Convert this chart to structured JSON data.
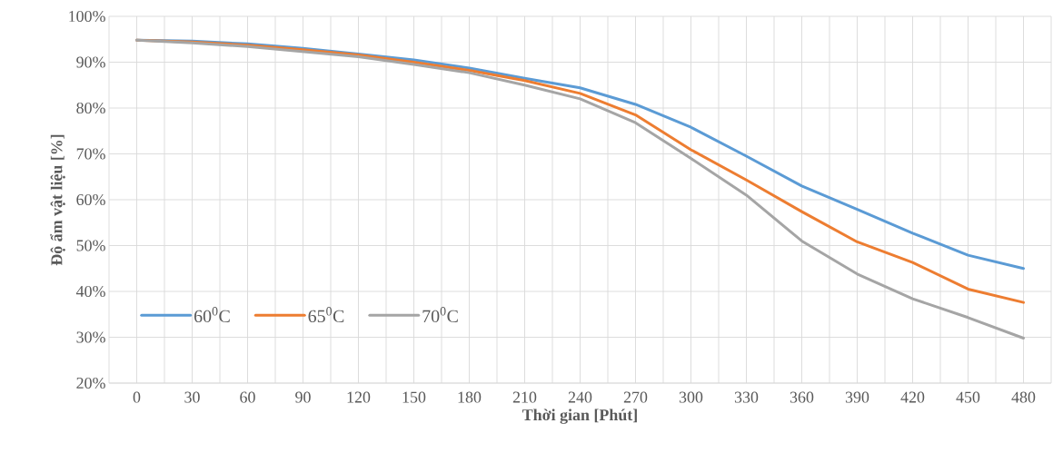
{
  "chart_data": {
    "type": "line",
    "xlabel": "Thời gian [Phút]",
    "ylabel": "Độ ẩm vật liệu [%]",
    "categories": [
      "0",
      "30",
      "60",
      "90",
      "120",
      "150",
      "180",
      "210",
      "240",
      "270",
      "300",
      "330",
      "360",
      "390",
      "420",
      "450",
      "480"
    ],
    "series": [
      {
        "name": "60$^{0}$C",
        "color": "#5b9bd5",
        "values": [
          94.8,
          94.6,
          94.0,
          93.0,
          91.8,
          90.5,
          88.7,
          86.5,
          84.4,
          80.8,
          75.8,
          69.5,
          63.0,
          57.9,
          52.7,
          47.9,
          45.0
        ]
      },
      {
        "name": "65$^{0}$C",
        "color": "#ed7d31",
        "values": [
          94.8,
          94.4,
          93.7,
          92.7,
          91.6,
          90.0,
          88.2,
          86.0,
          83.2,
          78.5,
          70.9,
          64.3,
          57.4,
          50.8,
          46.3,
          40.5,
          37.6
        ]
      },
      {
        "name": "70$^{0}$C",
        "color": "#a5a5a5",
        "values": [
          94.8,
          94.2,
          93.4,
          92.3,
          91.2,
          89.5,
          87.7,
          85.0,
          82.0,
          76.8,
          69.0,
          61.0,
          51.0,
          43.8,
          38.4,
          34.3,
          29.8
        ]
      }
    ],
    "ylim": [
      20,
      100
    ],
    "yticks": [
      {
        "value": 20,
        "label": "20%"
      },
      {
        "value": 30,
        "label": "30%"
      },
      {
        "value": 40,
        "label": "40%"
      },
      {
        "value": 50,
        "label": "50%"
      },
      {
        "value": 60,
        "label": "60%"
      },
      {
        "value": 70,
        "label": "70%"
      },
      {
        "value": 80,
        "label": "80%"
      },
      {
        "value": 90,
        "label": "90%"
      },
      {
        "value": 100,
        "label": "100%"
      }
    ],
    "grid": true,
    "legend": "bottom left",
    "marker": "none",
    "line_style": "solid"
  }
}
